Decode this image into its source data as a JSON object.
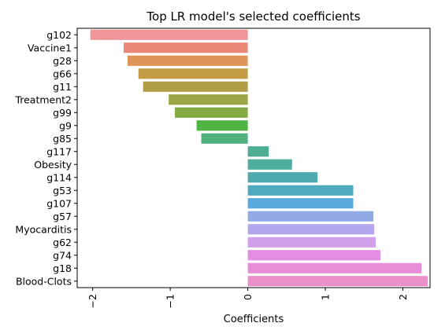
{
  "chart_data": {
    "type": "bar",
    "orientation": "horizontal",
    "title": "Top LR model's selected coefficients",
    "xlabel": "Coefficients",
    "ylabel": "",
    "xlim": [
      -2.2,
      2.35
    ],
    "xticks": [
      -2,
      -1,
      0,
      1,
      2
    ],
    "xtick_labels": [
      "−2",
      "−1",
      "0",
      "1",
      "2"
    ],
    "xtick_rotation": "vertical",
    "grid": false,
    "legend": "none",
    "categories": [
      "g102",
      "Vaccine1",
      "g28",
      "g66",
      "g11",
      "Treatment2",
      "g99",
      "g9",
      "g85",
      "g117",
      "Obesity",
      "g114",
      "g53",
      "g107",
      "g57",
      "Myocarditis",
      "g62",
      "g74",
      "g18",
      "Blood-Clots"
    ],
    "values": [
      -2.03,
      -1.6,
      -1.55,
      -1.41,
      -1.35,
      -1.02,
      -0.94,
      -0.66,
      -0.6,
      0.27,
      0.57,
      0.9,
      1.36,
      1.36,
      1.62,
      1.63,
      1.65,
      1.71,
      2.24,
      2.32
    ],
    "colors": [
      "#f0969a",
      "#eb8978",
      "#de9557",
      "#c29b44",
      "#b09d45",
      "#9ba545",
      "#84ab43",
      "#4fb443",
      "#4fb07e",
      "#4fad93",
      "#4dae9f",
      "#4eaaaf",
      "#4fa9bf",
      "#58aade",
      "#91aae6",
      "#b3a6ec",
      "#d29fea",
      "#e38ee2",
      "#e88dd7",
      "#eb8fc8"
    ]
  }
}
